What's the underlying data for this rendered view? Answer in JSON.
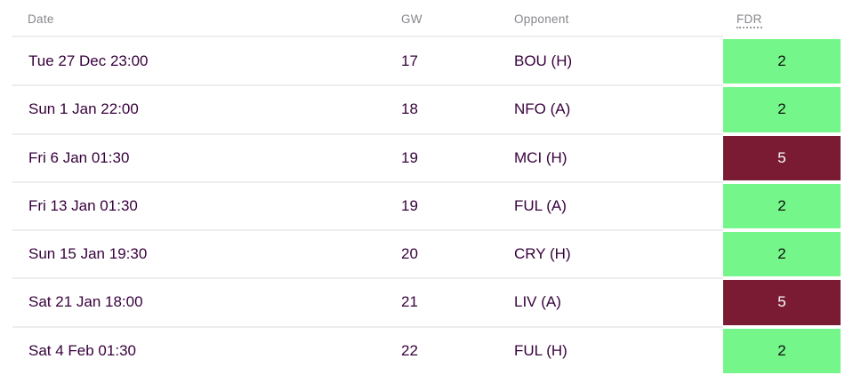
{
  "table": {
    "columns": [
      {
        "key": "date",
        "label": "Date"
      },
      {
        "key": "gw",
        "label": "GW"
      },
      {
        "key": "opponent",
        "label": "Opponent"
      },
      {
        "key": "fdr",
        "label": "FDR"
      }
    ],
    "rows": [
      {
        "date": "Tue 27 Dec 23:00",
        "gw": "17",
        "opponent": "BOU (H)",
        "fdr": "2",
        "fdr_bg": "#74f68a",
        "fdr_text": "#111111"
      },
      {
        "date": "Sun 1 Jan 22:00",
        "gw": "18",
        "opponent": "NFO (A)",
        "fdr": "2",
        "fdr_bg": "#74f68a",
        "fdr_text": "#111111"
      },
      {
        "date": "Fri 6 Jan 01:30",
        "gw": "19",
        "opponent": "MCI (H)",
        "fdr": "5",
        "fdr_bg": "#7a1b33",
        "fdr_text": "#ffffff"
      },
      {
        "date": "Fri 13 Jan 01:30",
        "gw": "19",
        "opponent": "FUL (A)",
        "fdr": "2",
        "fdr_bg": "#74f68a",
        "fdr_text": "#111111"
      },
      {
        "date": "Sun 15 Jan 19:30",
        "gw": "20",
        "opponent": "CRY (H)",
        "fdr": "2",
        "fdr_bg": "#74f68a",
        "fdr_text": "#111111"
      },
      {
        "date": "Sat 21 Jan 18:00",
        "gw": "21",
        "opponent": "LIV (A)",
        "fdr": "5",
        "fdr_bg": "#7a1b33",
        "fdr_text": "#ffffff"
      },
      {
        "date": "Sat 4 Feb 01:30",
        "gw": "22",
        "opponent": "FUL (H)",
        "fdr": "2",
        "fdr_bg": "#74f68a",
        "fdr_text": "#111111"
      }
    ]
  },
  "colors": {
    "body_text": "#37003c",
    "header_text": "#87858c",
    "divider": "#ededed",
    "fdr_easy_bg": "#74f68a",
    "fdr_hard_bg": "#7a1b33"
  }
}
